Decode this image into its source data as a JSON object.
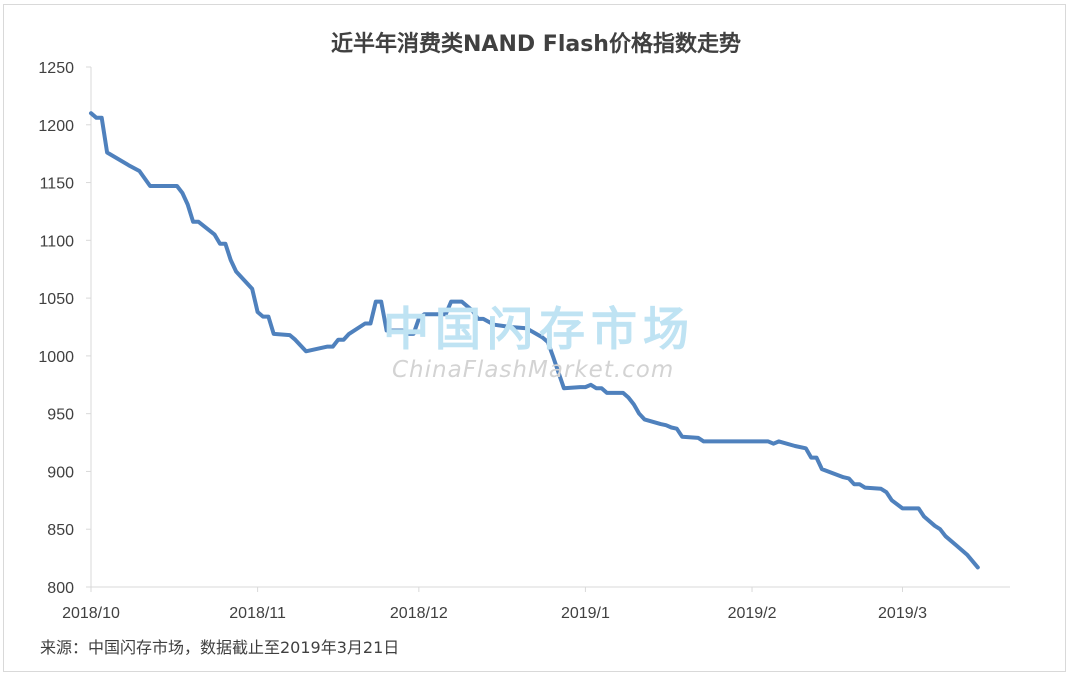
{
  "title": "近半年消费类NAND Flash价格指数走势",
  "source": "来源：中国闪存市场，数据截止至2019年3月21日",
  "watermark": {
    "text_cn": "中国闪存市场",
    "text_en": "ChinaFlashMarket.com"
  },
  "chart_data": {
    "type": "line",
    "title": "近半年消费类NAND Flash价格指数走势",
    "xlabel": "",
    "ylabel": "",
    "ylim": [
      800,
      1250
    ],
    "yticks": [
      800,
      850,
      900,
      950,
      1000,
      1050,
      1100,
      1150,
      1200,
      1250
    ],
    "x_tick_labels": [
      "2018/10",
      "2018/11",
      "2018/12",
      "2019/1",
      "2019/2",
      "2019/3"
    ],
    "x_tick_dates": [
      "2018-10-01",
      "2018-11-01",
      "2018-12-01",
      "2019-01-01",
      "2019-02-01",
      "2019-03-01"
    ],
    "x_range": [
      "2018-10-01",
      "2019-03-21"
    ],
    "grid": false,
    "legend": "none",
    "series": [
      {
        "color": "#4f81bd",
        "points": [
          [
            "2018-10-01",
            1210
          ],
          [
            "2018-10-02",
            1206
          ],
          [
            "2018-10-03",
            1206
          ],
          [
            "2018-10-04",
            1176
          ],
          [
            "2018-10-08",
            1165
          ],
          [
            "2018-10-10",
            1160
          ],
          [
            "2018-10-12",
            1147
          ],
          [
            "2018-10-17",
            1147
          ],
          [
            "2018-10-18",
            1141
          ],
          [
            "2018-10-19",
            1131
          ],
          [
            "2018-10-20",
            1116
          ],
          [
            "2018-10-21",
            1116
          ],
          [
            "2018-10-24",
            1105
          ],
          [
            "2018-10-25",
            1097
          ],
          [
            "2018-10-26",
            1097
          ],
          [
            "2018-10-27",
            1083
          ],
          [
            "2018-10-28",
            1073
          ],
          [
            "2018-10-31",
            1058
          ],
          [
            "2018-11-01",
            1038
          ],
          [
            "2018-11-02",
            1034
          ],
          [
            "2018-11-03",
            1034
          ],
          [
            "2018-11-04",
            1019
          ],
          [
            "2018-11-07",
            1018
          ],
          [
            "2018-11-08",
            1014
          ],
          [
            "2018-11-10",
            1004
          ],
          [
            "2018-11-14",
            1008
          ],
          [
            "2018-11-15",
            1008
          ],
          [
            "2018-11-16",
            1014
          ],
          [
            "2018-11-17",
            1014
          ],
          [
            "2018-11-18",
            1019
          ],
          [
            "2018-11-21",
            1028
          ],
          [
            "2018-11-22",
            1028
          ],
          [
            "2018-11-23",
            1047
          ],
          [
            "2018-11-24",
            1047
          ],
          [
            "2018-11-25",
            1022
          ],
          [
            "2018-11-28",
            1022
          ],
          [
            "2018-11-29",
            1019
          ],
          [
            "2018-11-30",
            1019
          ],
          [
            "2018-12-01",
            1032
          ],
          [
            "2018-12-02",
            1036
          ],
          [
            "2018-12-06",
            1036
          ],
          [
            "2018-12-07",
            1047
          ],
          [
            "2018-12-09",
            1047
          ],
          [
            "2018-12-11",
            1039
          ],
          [
            "2018-12-12",
            1032
          ],
          [
            "2018-12-13",
            1032
          ],
          [
            "2018-12-15",
            1027
          ],
          [
            "2018-12-18",
            1025
          ],
          [
            "2018-12-21",
            1024
          ],
          [
            "2018-12-24",
            1016
          ],
          [
            "2018-12-25",
            1012
          ],
          [
            "2018-12-26",
            999
          ],
          [
            "2018-12-28",
            972
          ],
          [
            "2018-12-31",
            973
          ],
          [
            "2019-01-01",
            973
          ],
          [
            "2019-01-02",
            975
          ],
          [
            "2019-01-03",
            972
          ],
          [
            "2019-01-04",
            972
          ],
          [
            "2019-01-05",
            968
          ],
          [
            "2019-01-08",
            968
          ],
          [
            "2019-01-09",
            964
          ],
          [
            "2019-01-10",
            958
          ],
          [
            "2019-01-11",
            950
          ],
          [
            "2019-01-12",
            945
          ],
          [
            "2019-01-15",
            941
          ],
          [
            "2019-01-16",
            940
          ],
          [
            "2019-01-17",
            938
          ],
          [
            "2019-01-18",
            937
          ],
          [
            "2019-01-19",
            930
          ],
          [
            "2019-01-22",
            929
          ],
          [
            "2019-01-23",
            926
          ],
          [
            "2019-02-01",
            926
          ],
          [
            "2019-02-04",
            926
          ],
          [
            "2019-02-05",
            924
          ],
          [
            "2019-02-06",
            926
          ],
          [
            "2019-02-09",
            922
          ],
          [
            "2019-02-11",
            920
          ],
          [
            "2019-02-12",
            912
          ],
          [
            "2019-02-13",
            912
          ],
          [
            "2019-02-14",
            902
          ],
          [
            "2019-02-18",
            895
          ],
          [
            "2019-02-19",
            894
          ],
          [
            "2019-02-20",
            889
          ],
          [
            "2019-02-21",
            889
          ],
          [
            "2019-02-22",
            886
          ],
          [
            "2019-02-25",
            885
          ],
          [
            "2019-02-26",
            882
          ],
          [
            "2019-02-27",
            875
          ],
          [
            "2019-03-01",
            868
          ],
          [
            "2019-03-04",
            868
          ],
          [
            "2019-03-05",
            861
          ],
          [
            "2019-03-07",
            853
          ],
          [
            "2019-03-08",
            850
          ],
          [
            "2019-03-09",
            844
          ],
          [
            "2019-03-11",
            836
          ],
          [
            "2019-03-13",
            828
          ],
          [
            "2019-03-15",
            817
          ]
        ]
      }
    ]
  }
}
